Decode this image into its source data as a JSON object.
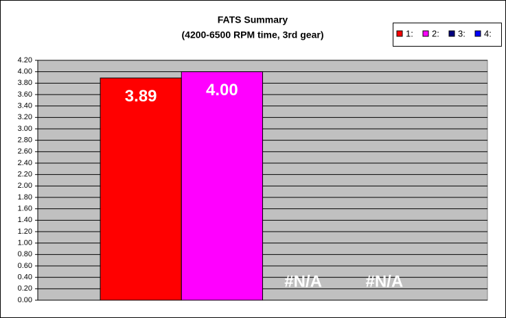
{
  "chart_data": {
    "type": "bar",
    "title": "FATS Summary",
    "subtitle": "(4200-6500 RPM time, 3rd gear)",
    "categories": [
      null
    ],
    "series": [
      {
        "name": "1:",
        "color": "#ff0000",
        "values": [
          3.89
        ],
        "value_labels": [
          "3.89"
        ]
      },
      {
        "name": "2:",
        "color": "#ff00ff",
        "values": [
          4.0
        ],
        "value_labels": [
          "4.00"
        ]
      },
      {
        "name": "3:",
        "color": "#000080",
        "values": [
          null
        ],
        "value_labels": [
          "#N/A"
        ]
      },
      {
        "name": "4:",
        "color": "#0000ff",
        "values": [
          null
        ],
        "value_labels": [
          "#N/A"
        ]
      }
    ],
    "ylim": [
      0,
      4.2
    ],
    "yticks": [
      {
        "value": 0,
        "label": "0.00"
      },
      {
        "value": 0.2,
        "label": "0.20"
      },
      {
        "value": 0.4,
        "label": "0.40"
      },
      {
        "value": 0.6,
        "label": "0.60"
      },
      {
        "value": 0.8,
        "label": "0.80"
      },
      {
        "value": 1,
        "label": "1.00"
      },
      {
        "value": 1.2,
        "label": "1.20"
      },
      {
        "value": 1.4,
        "label": "1.40"
      },
      {
        "value": 1.6,
        "label": "1.60"
      },
      {
        "value": 1.8,
        "label": "1.80"
      },
      {
        "value": 2,
        "label": "2.00"
      },
      {
        "value": 2.2,
        "label": "2.20"
      },
      {
        "value": 2.4,
        "label": "2.40"
      },
      {
        "value": 2.6,
        "label": "2.60"
      },
      {
        "value": 2.8,
        "label": "2.80"
      },
      {
        "value": 3,
        "label": "3.00"
      },
      {
        "value": 3.2,
        "label": "3.20"
      },
      {
        "value": 3.4,
        "label": "3.40"
      },
      {
        "value": 3.6,
        "label": "3.60"
      },
      {
        "value": 3.8,
        "label": "3.80"
      },
      {
        "value": 4,
        "label": "4.00"
      },
      {
        "value": 4.2,
        "label": "4.20"
      }
    ],
    "grid": true,
    "legend": "top-right"
  }
}
